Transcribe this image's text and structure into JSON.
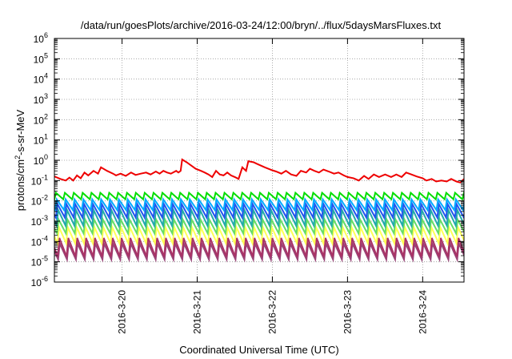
{
  "chart_data": {
    "type": "line",
    "title": "/data/run/goesPlots/archive/2016-03-24/12:00/bryn/../flux/5daysMarsFluxes.txt",
    "xlabel": "Coordinated Universal Time (UTC)",
    "ylabel_base": "protons/cm",
    "ylabel_sup": "2",
    "ylabel_rest": "-s-sr-MeV",
    "yscale": "log",
    "ylim_exp": [
      -6,
      6
    ],
    "y_ticks": [
      {
        "base": "10",
        "exp": "6"
      },
      {
        "base": "10",
        "exp": "5"
      },
      {
        "base": "10",
        "exp": "4"
      },
      {
        "base": "10",
        "exp": "3"
      },
      {
        "base": "10",
        "exp": "2"
      },
      {
        "base": "10",
        "exp": "1"
      },
      {
        "base": "10",
        "exp": "0"
      },
      {
        "base": "10",
        "exp": "-1"
      },
      {
        "base": "10",
        "exp": "-2"
      },
      {
        "base": "10",
        "exp": "-3"
      },
      {
        "base": "10",
        "exp": "-4"
      },
      {
        "base": "10",
        "exp": "-5"
      },
      {
        "base": "10",
        "exp": "-6"
      }
    ],
    "xlim_days": [
      19.1,
      24.55
    ],
    "x_ticks": [
      {
        "label": "2016-3-20",
        "day": 20
      },
      {
        "label": "2016-3-21",
        "day": 21
      },
      {
        "label": "2016-3-22",
        "day": 22
      },
      {
        "label": "2016-3-23",
        "day": 23
      },
      {
        "label": "2016-3-24",
        "day": 24
      }
    ],
    "grid": true,
    "series": [
      {
        "color": "#ee0000",
        "points": [
          [
            19.1,
            0.16
          ],
          [
            19.18,
            0.12
          ],
          [
            19.25,
            0.1
          ],
          [
            19.3,
            0.14
          ],
          [
            19.35,
            0.1
          ],
          [
            19.4,
            0.18
          ],
          [
            19.45,
            0.13
          ],
          [
            19.5,
            0.25
          ],
          [
            19.55,
            0.18
          ],
          [
            19.62,
            0.3
          ],
          [
            19.68,
            0.22
          ],
          [
            19.72,
            0.45
          ],
          [
            19.8,
            0.3
          ],
          [
            19.88,
            0.22
          ],
          [
            19.92,
            0.18
          ],
          [
            19.98,
            0.22
          ],
          [
            20.05,
            0.17
          ],
          [
            20.12,
            0.25
          ],
          [
            20.18,
            0.19
          ],
          [
            20.25,
            0.22
          ],
          [
            20.32,
            0.25
          ],
          [
            20.38,
            0.2
          ],
          [
            20.45,
            0.28
          ],
          [
            20.5,
            0.22
          ],
          [
            20.55,
            0.3
          ],
          [
            20.6,
            0.25
          ],
          [
            20.65,
            0.22
          ],
          [
            20.72,
            0.3
          ],
          [
            20.75,
            0.25
          ],
          [
            20.78,
            0.3
          ],
          [
            20.8,
            1.1
          ],
          [
            20.86,
            0.8
          ],
          [
            20.92,
            0.55
          ],
          [
            20.98,
            0.38
          ],
          [
            21.05,
            0.3
          ],
          [
            21.1,
            0.25
          ],
          [
            21.15,
            0.2
          ],
          [
            21.2,
            0.15
          ],
          [
            21.25,
            0.3
          ],
          [
            21.3,
            0.2
          ],
          [
            21.35,
            0.18
          ],
          [
            21.4,
            0.25
          ],
          [
            21.45,
            0.18
          ],
          [
            21.5,
            0.15
          ],
          [
            21.55,
            0.12
          ],
          [
            21.6,
            0.45
          ],
          [
            21.65,
            0.3
          ],
          [
            21.68,
            0.9
          ],
          [
            21.75,
            0.8
          ],
          [
            21.8,
            0.65
          ],
          [
            21.9,
            0.45
          ],
          [
            22.0,
            0.32
          ],
          [
            22.05,
            0.28
          ],
          [
            22.12,
            0.22
          ],
          [
            22.18,
            0.3
          ],
          [
            22.25,
            0.2
          ],
          [
            22.32,
            0.17
          ],
          [
            22.38,
            0.3
          ],
          [
            22.45,
            0.25
          ],
          [
            22.5,
            0.38
          ],
          [
            22.56,
            0.3
          ],
          [
            22.62,
            0.25
          ],
          [
            22.68,
            0.35
          ],
          [
            22.75,
            0.28
          ],
          [
            22.82,
            0.22
          ],
          [
            22.88,
            0.25
          ],
          [
            22.95,
            0.18
          ],
          [
            23.0,
            0.15
          ],
          [
            23.08,
            0.13
          ],
          [
            23.15,
            0.1
          ],
          [
            23.22,
            0.17
          ],
          [
            23.28,
            0.12
          ],
          [
            23.35,
            0.2
          ],
          [
            23.42,
            0.15
          ],
          [
            23.5,
            0.2
          ],
          [
            23.58,
            0.15
          ],
          [
            23.65,
            0.2
          ],
          [
            23.72,
            0.15
          ],
          [
            23.78,
            0.25
          ],
          [
            23.85,
            0.2
          ],
          [
            23.92,
            0.16
          ],
          [
            24.0,
            0.13
          ],
          [
            24.05,
            0.1
          ],
          [
            24.12,
            0.12
          ],
          [
            24.18,
            0.09
          ],
          [
            24.25,
            0.1
          ],
          [
            24.32,
            0.09
          ],
          [
            24.38,
            0.12
          ],
          [
            24.45,
            0.09
          ],
          [
            24.5,
            0.08
          ],
          [
            24.55,
            0.12
          ]
        ]
      },
      {
        "color": "#00dd00",
        "sawtooth": {
          "peak": 0.025,
          "trough": 0.012,
          "period": 0.118,
          "phase": 0.0
        }
      },
      {
        "color": "#00aaff",
        "sawtooth": {
          "peak": 0.012,
          "trough": 0.0035,
          "period": 0.118,
          "phase": 0.01
        }
      },
      {
        "color": "#2255ee",
        "sawtooth": {
          "peak": 0.007,
          "trough": 0.0015,
          "period": 0.118,
          "phase": 0.02
        }
      },
      {
        "color": "#22aaaa",
        "sawtooth": {
          "peak": 0.0035,
          "trough": 0.0006,
          "period": 0.118,
          "phase": 0.03
        }
      },
      {
        "color": "#66dd66",
        "sawtooth": {
          "peak": 0.0012,
          "trough": 0.00025,
          "period": 0.118,
          "phase": 0.035
        }
      },
      {
        "color": "#ffff55",
        "sawtooth": {
          "peak": 0.0005,
          "trough": 8e-05,
          "period": 0.118,
          "phase": 0.04
        }
      },
      {
        "color": "#aa3366",
        "sawtooth": {
          "peak": 0.00015,
          "trough": 1.8e-05,
          "period": 0.118,
          "phase": 0.045
        }
      },
      {
        "color": "#994477",
        "sawtooth": {
          "peak": 8e-05,
          "trough": 1.3e-05,
          "period": 0.118,
          "phase": 0.05
        }
      }
    ]
  }
}
